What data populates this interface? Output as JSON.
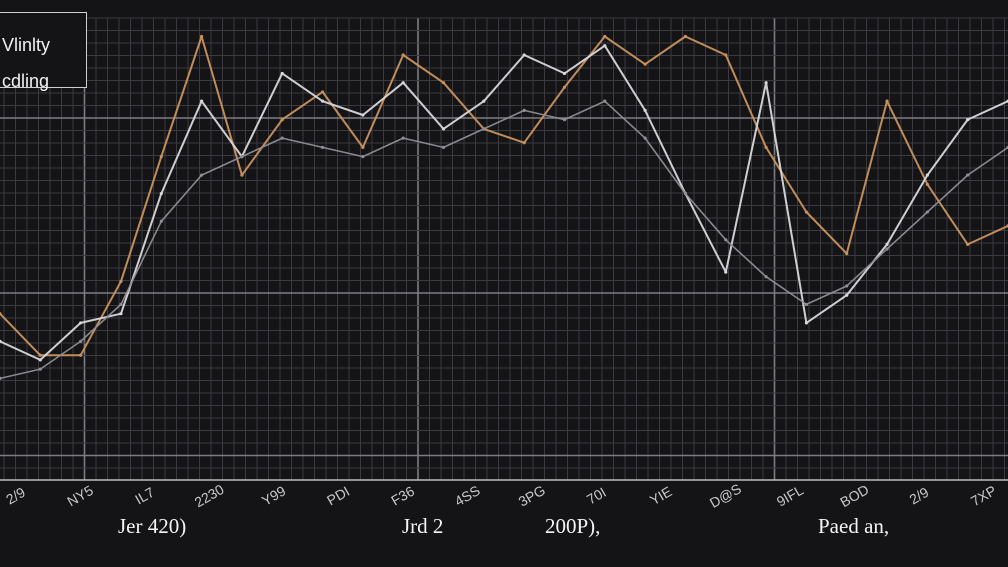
{
  "legend": {
    "line1": "Vlinlty",
    "line2": "cdling"
  },
  "colors": {
    "background": "#141416",
    "grid": "#3a3a40",
    "grid_major": "#7c7c84",
    "series_orange": "#c9935e",
    "series_white": "#d8d8dc",
    "series_gray": "#8e8e95"
  },
  "bottom_labels": [
    "Jer 420)",
    "Jrd 2",
    "200P),",
    "Paed an,"
  ],
  "chart_data": {
    "type": "line",
    "title": "",
    "xlabel": "",
    "ylabel": "",
    "x_tick_labels": [
      "2/9",
      "NY5",
      "IL7",
      "2230",
      "Y99",
      "PDI",
      "F36",
      "4SS",
      "3PG",
      "70I",
      "YIE",
      "D@S",
      "9IFL",
      "BOD",
      "2/9",
      "7XP"
    ],
    "ylim": [
      0,
      100
    ],
    "grid": true,
    "series": [
      {
        "color": "orange",
        "x": [
          0,
          4,
          8,
          12,
          16,
          20,
          24,
          28,
          32,
          36,
          40,
          44,
          48,
          52,
          56,
          60,
          64,
          68,
          72,
          76,
          80,
          84,
          88,
          92,
          96,
          100
        ],
        "values": [
          36,
          27,
          27,
          43,
          70,
          96,
          66,
          78,
          84,
          72,
          92,
          86,
          76,
          73,
          85,
          96,
          90,
          96,
          92,
          72,
          58,
          49,
          82,
          64,
          51,
          55
        ]
      },
      {
        "color": "white",
        "x": [
          0,
          4,
          8,
          12,
          16,
          20,
          24,
          28,
          32,
          36,
          40,
          44,
          48,
          52,
          56,
          60,
          64,
          68,
          72,
          76,
          80,
          84,
          88,
          92,
          96,
          100
        ],
        "values": [
          30,
          26,
          34,
          36,
          62,
          82,
          70,
          88,
          82,
          79,
          86,
          76,
          82,
          92,
          88,
          94,
          80,
          62,
          45,
          86,
          34,
          40,
          51,
          66,
          78,
          82
        ]
      },
      {
        "color": "gray",
        "x": [
          0,
          4,
          8,
          12,
          16,
          20,
          24,
          28,
          32,
          36,
          40,
          44,
          48,
          52,
          56,
          60,
          64,
          68,
          72,
          76,
          80,
          84,
          88,
          92,
          96,
          100
        ],
        "values": [
          22,
          24,
          30,
          38,
          56,
          66,
          70,
          74,
          72,
          70,
          74,
          72,
          76,
          80,
          78,
          82,
          74,
          62,
          52,
          44,
          38,
          42,
          50,
          58,
          66,
          72
        ]
      }
    ]
  }
}
